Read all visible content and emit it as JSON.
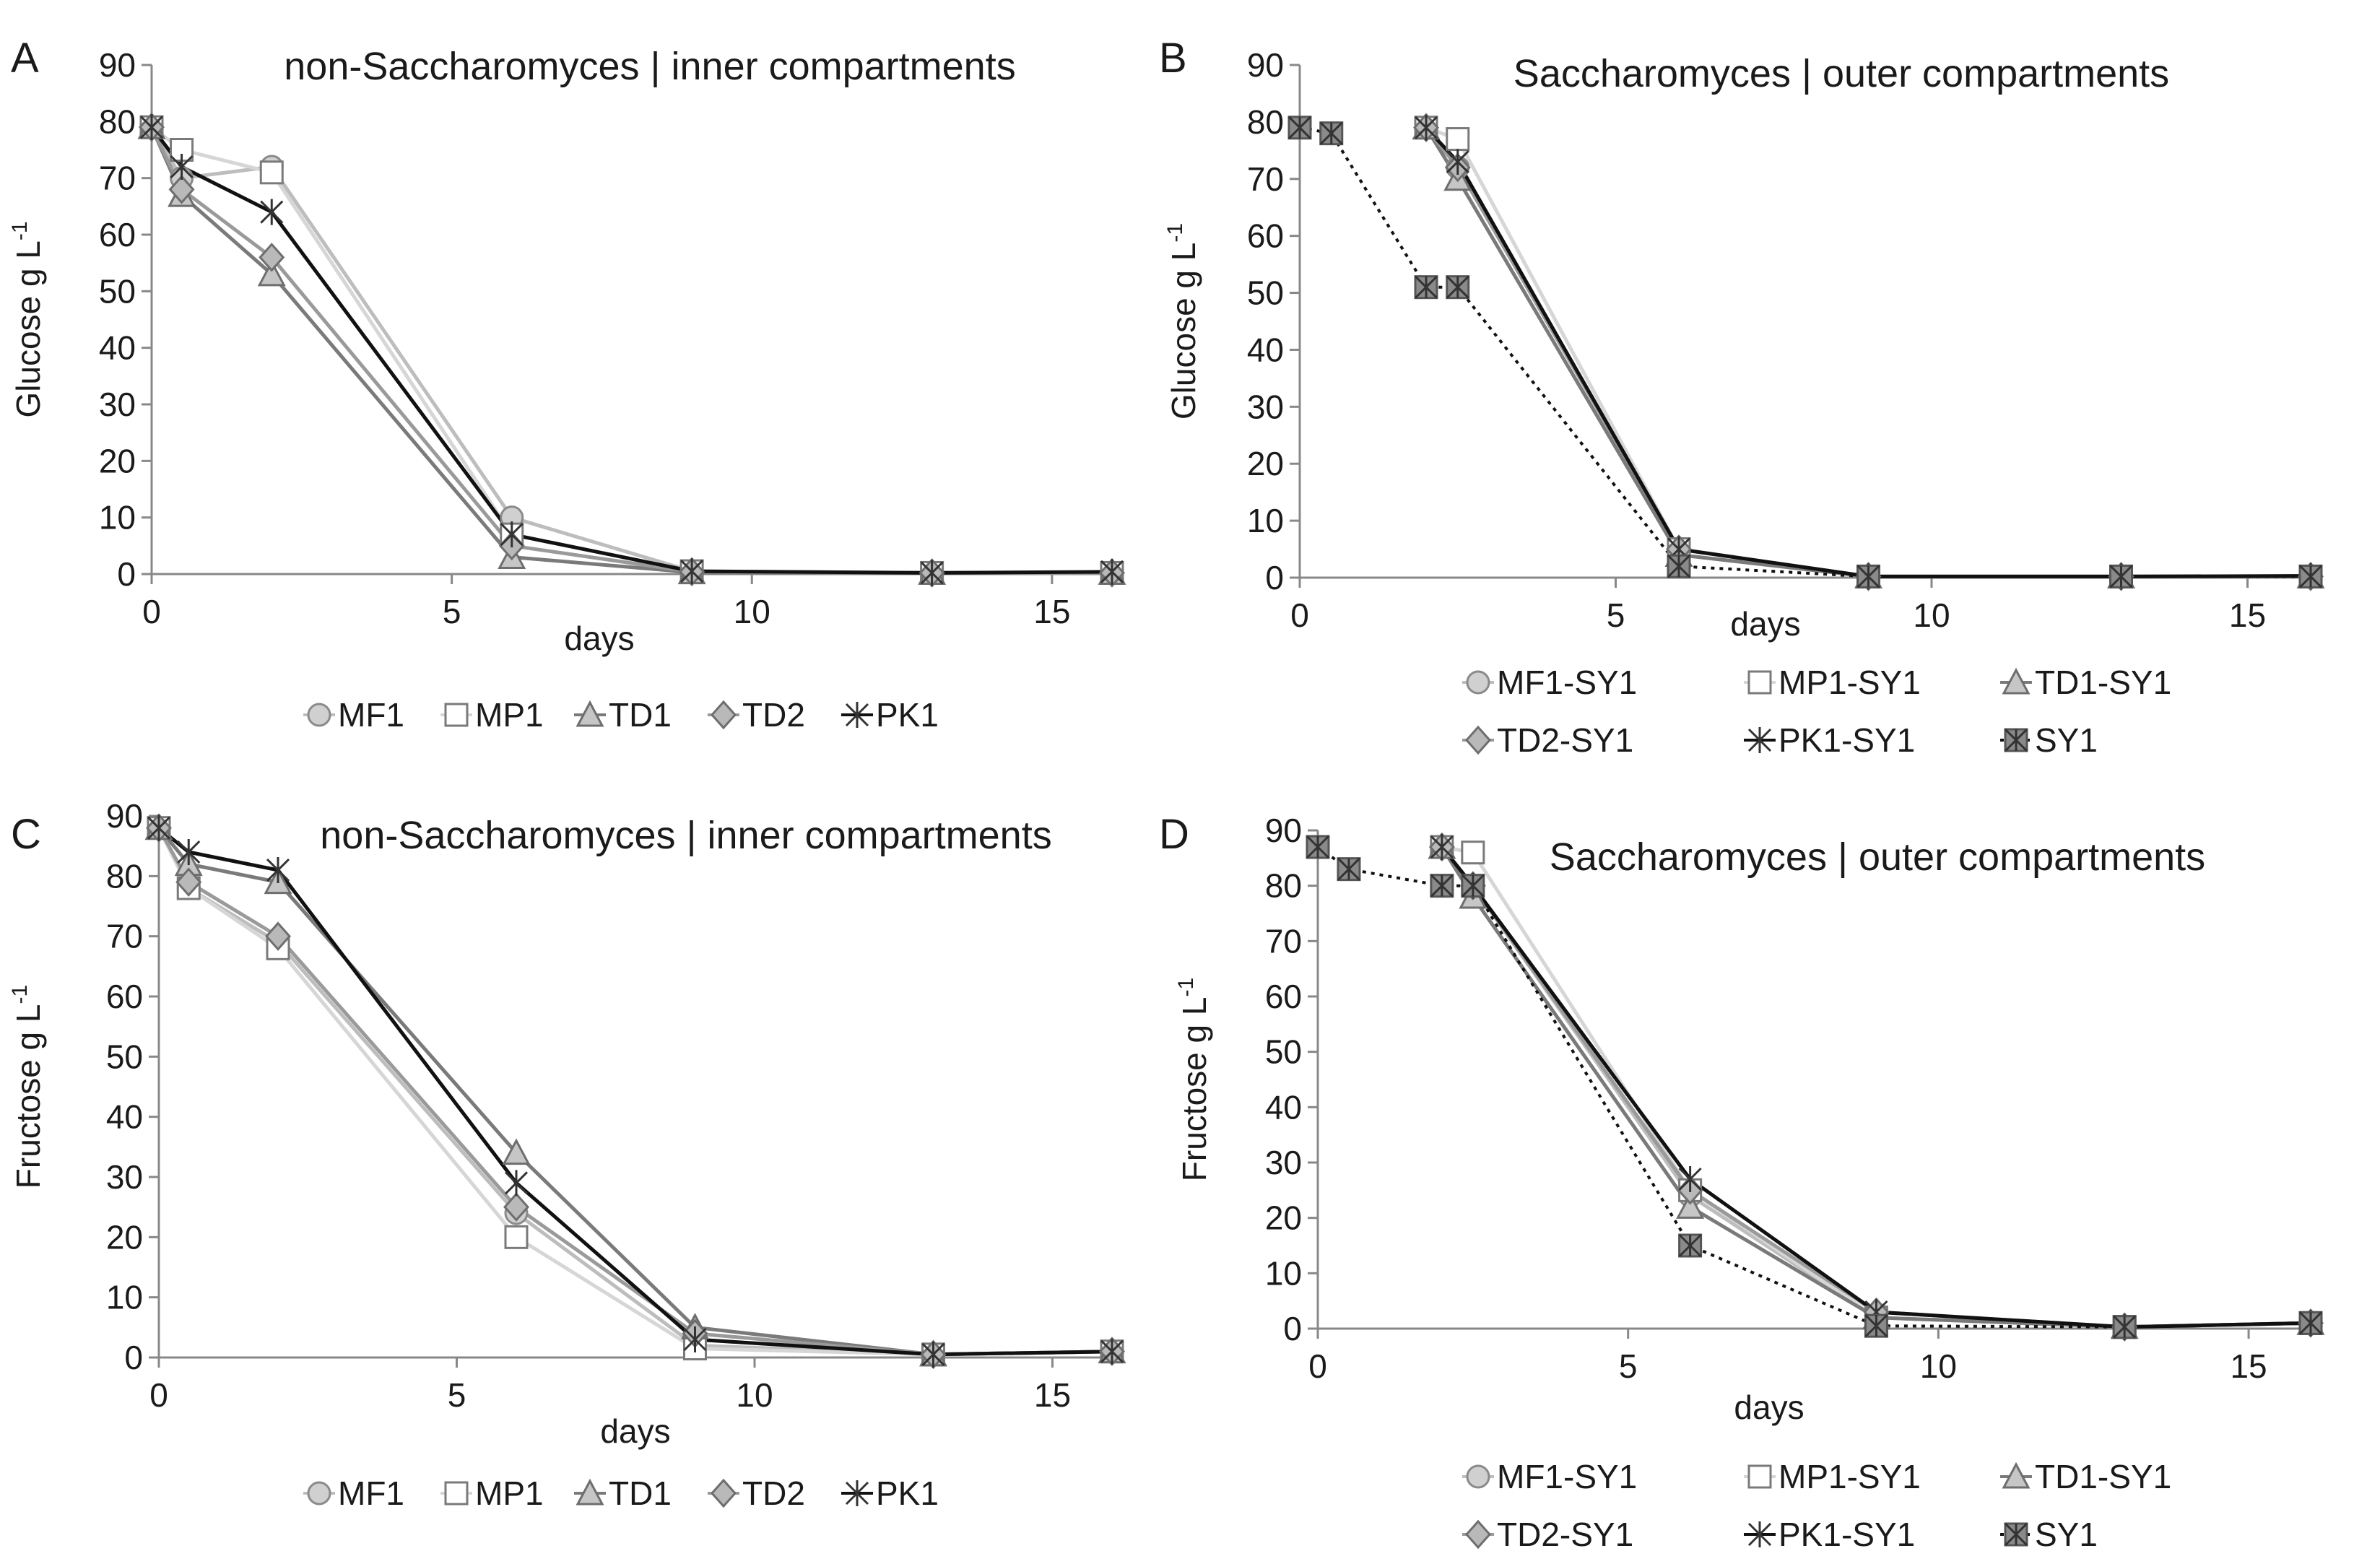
{
  "figure": {
    "series_styles": {
      "MF1": {
        "marker": "circle",
        "line": "#bdbdbd",
        "fill": "#d0d0d0",
        "dash": ""
      },
      "MP1": {
        "marker": "square",
        "line": "#d6d6d6",
        "fill": "#ffffff",
        "dash": ""
      },
      "TD1": {
        "marker": "triangle",
        "line": "#7a7a7a",
        "fill": "#c6c6c6",
        "dash": ""
      },
      "TD2": {
        "marker": "diamond",
        "line": "#9a9a9a",
        "fill": "#b9b9b9",
        "dash": ""
      },
      "PK1": {
        "marker": "asterisk",
        "line": "#111111",
        "fill": "#111111",
        "dash": ""
      },
      "SY1": {
        "marker": "starbox",
        "line": "#111111",
        "fill": "#8a8a8a",
        "dash": "dotted"
      }
    }
  },
  "chart_data": [
    {
      "id": "A",
      "panel_label": "A",
      "type": "line",
      "title": "non-Saccharomyces | inner compartments",
      "xlabel": "days",
      "ylabel": "Glucose g L",
      "ylabel_sup": "-1",
      "xlim": [
        0,
        16
      ],
      "ylim": [
        0,
        90
      ],
      "xticks": [
        0,
        5,
        10,
        15
      ],
      "yticks": [
        0,
        10,
        20,
        30,
        40,
        50,
        60,
        70,
        80,
        90
      ],
      "xtick_labels": [
        "0",
        "5",
        "10",
        "15"
      ],
      "ytick_labels": [
        "0",
        "10",
        "20",
        "30",
        "40",
        "50",
        "60",
        "70",
        "80",
        "90"
      ],
      "series": [
        {
          "name": "MF1",
          "style": "MF1",
          "x": [
            0,
            0.5,
            2,
            6,
            9,
            13,
            16
          ],
          "y": [
            79,
            70,
            72,
            10,
            0.5,
            0.2,
            0.2
          ]
        },
        {
          "name": "MP1",
          "style": "MP1",
          "x": [
            0,
            0.5,
            2,
            6,
            9,
            13,
            16
          ],
          "y": [
            79,
            75,
            71,
            7,
            0.5,
            0.2,
            0.2
          ]
        },
        {
          "name": "TD1",
          "style": "TD1",
          "x": [
            0,
            0.5,
            2,
            6,
            9,
            13,
            16
          ],
          "y": [
            79,
            67,
            53,
            3,
            0.3,
            0.2,
            0.2
          ]
        },
        {
          "name": "TD2",
          "style": "TD2",
          "x": [
            0,
            0.5,
            2,
            6,
            9,
            13,
            16
          ],
          "y": [
            79,
            68,
            56,
            5,
            0.4,
            0.2,
            0.2
          ]
        },
        {
          "name": "PK1",
          "style": "PK1",
          "x": [
            0,
            0.5,
            2,
            6,
            9,
            13,
            16
          ],
          "y": [
            79,
            72,
            64,
            7,
            0.5,
            0.2,
            0.4
          ]
        }
      ],
      "legend_rows": [
        [
          "MF1",
          "MP1",
          "TD1",
          "TD2",
          "PK1"
        ]
      ]
    },
    {
      "id": "B",
      "panel_label": "B",
      "type": "line",
      "title": "Saccharomyces | outer compartments",
      "xlabel": "days",
      "ylabel": "Glucose g L",
      "ylabel_sup": "-1",
      "xlim": [
        0,
        16
      ],
      "ylim": [
        0,
        90
      ],
      "xticks": [
        0,
        5,
        10,
        15
      ],
      "yticks": [
        0,
        10,
        20,
        30,
        40,
        50,
        60,
        70,
        80,
        90
      ],
      "xtick_labels": [
        "0",
        "5",
        "10",
        "15"
      ],
      "ytick_labels": [
        "0",
        "10",
        "20",
        "30",
        "40",
        "50",
        "60",
        "70",
        "80",
        "90"
      ],
      "series": [
        {
          "name": "MF1-SY1",
          "style": "MF1",
          "x": [
            2,
            2.5,
            6,
            9,
            13,
            16
          ],
          "y": [
            79,
            72,
            5,
            0.2,
            0.2,
            0.2
          ]
        },
        {
          "name": "MP1-SY1",
          "style": "MP1",
          "x": [
            2,
            2.5,
            6,
            9,
            13,
            16
          ],
          "y": [
            79,
            77,
            5,
            0.2,
            0.2,
            0.2
          ]
        },
        {
          "name": "TD1-SY1",
          "style": "TD1",
          "x": [
            2,
            2.5,
            6,
            9,
            13,
            16
          ],
          "y": [
            79,
            70,
            4,
            0.2,
            0.2,
            0.2
          ]
        },
        {
          "name": "TD2-SY1",
          "style": "TD2",
          "x": [
            2,
            2.5,
            6,
            9,
            13,
            16
          ],
          "y": [
            79,
            72,
            5,
            0.2,
            0.2,
            0.2
          ]
        },
        {
          "name": "PK1-SY1",
          "style": "PK1",
          "x": [
            2,
            2.5,
            6,
            9,
            13,
            16
          ],
          "y": [
            79,
            73,
            5,
            0.2,
            0.2,
            0.3
          ]
        },
        {
          "name": "SY1",
          "style": "SY1",
          "x": [
            0,
            0.5,
            2,
            2.5,
            6,
            9,
            13,
            16
          ],
          "y": [
            79,
            78,
            51,
            51,
            2,
            0.2,
            0.2,
            0.2
          ]
        }
      ],
      "legend_rows": [
        [
          "MF1-SY1",
          "MP1-SY1",
          "TD1-SY1"
        ],
        [
          "TD2-SY1",
          "PK1-SY1",
          "SY1"
        ]
      ]
    },
    {
      "id": "C",
      "panel_label": "C",
      "type": "line",
      "title": "non-Saccharomyces | inner compartments",
      "xlabel": "days",
      "ylabel": "Fructose g L",
      "ylabel_sup": "-1",
      "xlim": [
        0,
        16
      ],
      "ylim": [
        0,
        90
      ],
      "xticks": [
        0,
        5,
        10,
        15
      ],
      "yticks": [
        0,
        10,
        20,
        30,
        40,
        50,
        60,
        70,
        80,
        90
      ],
      "xtick_labels": [
        "0",
        "5",
        "10",
        "15"
      ],
      "ytick_labels": [
        "0",
        "10",
        "20",
        "30",
        "40",
        "50",
        "60",
        "70",
        "80",
        "90"
      ],
      "series": [
        {
          "name": "MF1",
          "style": "MF1",
          "x": [
            0,
            0.5,
            2,
            6,
            9,
            13,
            16
          ],
          "y": [
            88,
            78,
            69,
            24,
            2,
            0.5,
            1
          ]
        },
        {
          "name": "MP1",
          "style": "MP1",
          "x": [
            0,
            0.5,
            2,
            6,
            9,
            13,
            16
          ],
          "y": [
            88,
            78,
            68,
            20,
            1.5,
            0.5,
            1
          ]
        },
        {
          "name": "TD1",
          "style": "TD1",
          "x": [
            0,
            0.5,
            2,
            6,
            9,
            13,
            16
          ],
          "y": [
            88,
            82,
            79,
            34,
            5,
            0.5,
            1
          ]
        },
        {
          "name": "TD2",
          "style": "TD2",
          "x": [
            0,
            0.5,
            2,
            6,
            9,
            13,
            16
          ],
          "y": [
            88,
            79,
            70,
            25,
            4,
            0.5,
            1
          ]
        },
        {
          "name": "PK1",
          "style": "PK1",
          "x": [
            0,
            0.5,
            2,
            6,
            9,
            13,
            16
          ],
          "y": [
            88,
            84,
            81,
            29,
            3,
            0.5,
            1
          ]
        }
      ],
      "legend_rows": [
        [
          "MF1",
          "MP1",
          "TD1",
          "TD2",
          "PK1"
        ]
      ]
    },
    {
      "id": "D",
      "panel_label": "D",
      "type": "line",
      "title": "Saccharomyces | outer compartments",
      "xlabel": "days",
      "ylabel": "Fructose g L",
      "ylabel_sup": "-1",
      "xlim": [
        0,
        16
      ],
      "ylim": [
        0,
        90
      ],
      "xticks": [
        0,
        5,
        10,
        15
      ],
      "yticks": [
        0,
        10,
        20,
        30,
        40,
        50,
        60,
        70,
        80,
        90
      ],
      "xtick_labels": [
        "0",
        "5",
        "10",
        "15"
      ],
      "ytick_labels": [
        "0",
        "10",
        "20",
        "30",
        "40",
        "50",
        "60",
        "70",
        "80",
        "90"
      ],
      "series": [
        {
          "name": "MF1-SY1",
          "style": "MF1",
          "x": [
            2,
            2.5,
            6,
            9,
            13,
            16
          ],
          "y": [
            87,
            80,
            24,
            2,
            0.3,
            1
          ]
        },
        {
          "name": "MP1-SY1",
          "style": "MP1",
          "x": [
            2,
            2.5,
            6,
            9,
            13,
            16
          ],
          "y": [
            87,
            86,
            25,
            2,
            0.3,
            1
          ]
        },
        {
          "name": "TD1-SY1",
          "style": "TD1",
          "x": [
            2,
            2.5,
            6,
            9,
            13,
            16
          ],
          "y": [
            87,
            78,
            22,
            2,
            0.3,
            1
          ]
        },
        {
          "name": "TD2-SY1",
          "style": "TD2",
          "x": [
            2,
            2.5,
            6,
            9,
            13,
            16
          ],
          "y": [
            87,
            80,
            25,
            3,
            0.3,
            1
          ]
        },
        {
          "name": "PK1-SY1",
          "style": "PK1",
          "x": [
            2,
            2.5,
            6,
            9,
            13,
            16
          ],
          "y": [
            87,
            80,
            27,
            3,
            0.3,
            1
          ]
        },
        {
          "name": "SY1",
          "style": "SY1",
          "x": [
            0,
            0.5,
            2,
            2.5,
            6,
            9,
            13,
            16
          ],
          "y": [
            87,
            83,
            80,
            80,
            15,
            0.5,
            0.3,
            1
          ]
        }
      ],
      "legend_rows": [
        [
          "MF1-SY1",
          "MP1-SY1",
          "TD1-SY1"
        ],
        [
          "TD2-SY1",
          "PK1-SY1",
          "SY1"
        ]
      ]
    }
  ]
}
